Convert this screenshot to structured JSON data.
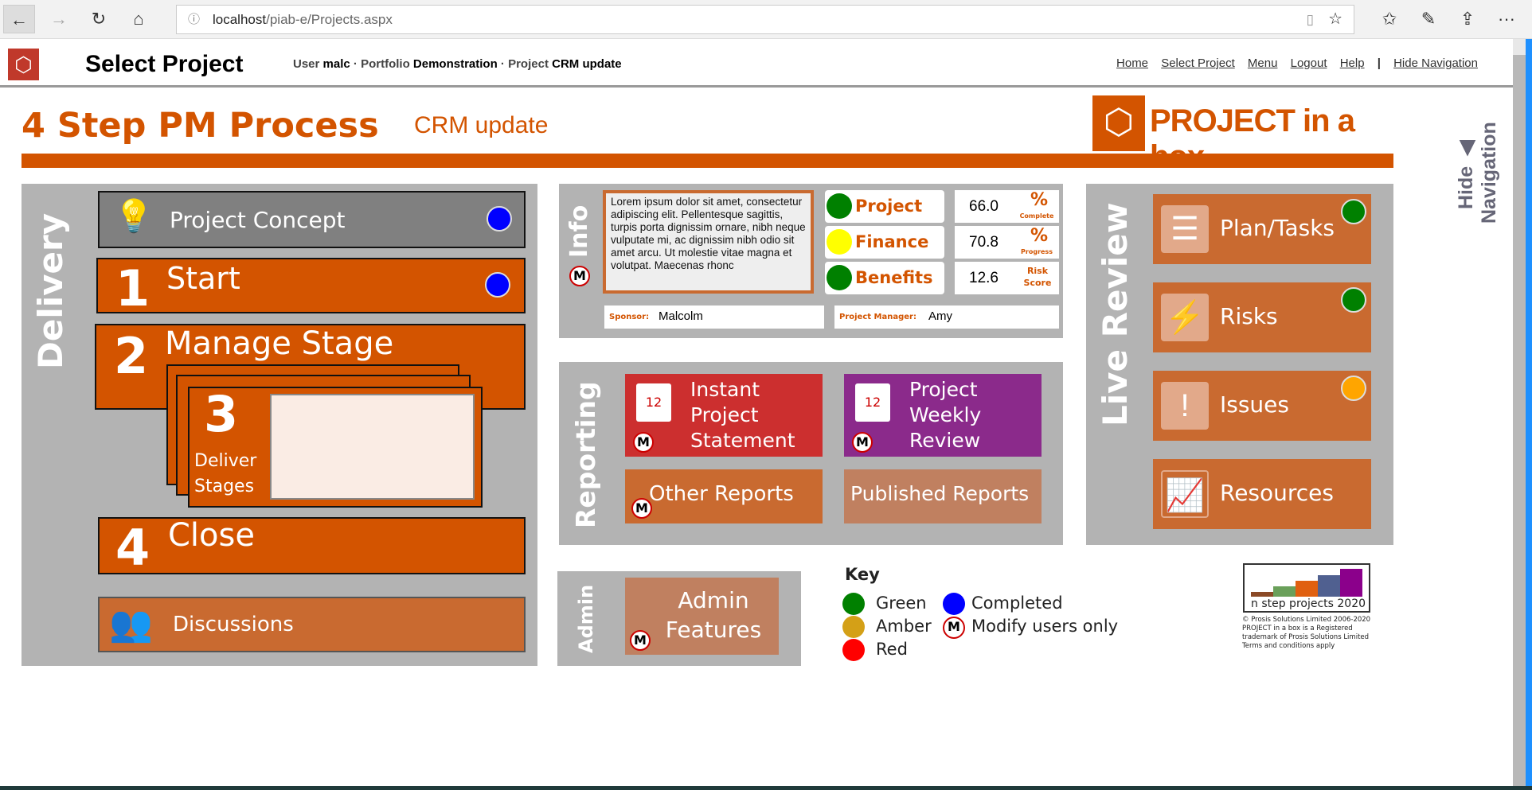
{
  "browser": {
    "url_host": "localhost",
    "url_path": "/piab-e/Projects.aspx",
    "icons": [
      "back-icon",
      "forward-icon",
      "refresh-icon",
      "home-icon",
      "info-icon",
      "reading-view-icon",
      "favorite-star-icon",
      "favorites-icon",
      "pen-icon",
      "share-icon",
      "more-icon"
    ],
    "more": "···"
  },
  "header": {
    "title": "Select Project",
    "user_label": "User",
    "user": "malc",
    "portfolio_label": "Portfolio",
    "portfolio": "Demonstration",
    "project_label": "Project",
    "project": "CRM update",
    "sep": "·",
    "links": [
      "Home",
      "Select Project",
      "Menu",
      "Logout",
      "Help"
    ],
    "divider": "|",
    "hide_nav": "Hide Navigation"
  },
  "page": {
    "title": "4 Step PM Process",
    "subtitle": "CRM update",
    "logo_text": "PROJECT in a box",
    "side_hide": "Hide",
    "side_nav": "Navigation"
  },
  "delivery": {
    "label": "Delivery",
    "concept": "Project Concept",
    "start_num": "1",
    "start": "Start",
    "manage_num": "2",
    "manage": "Manage Stage",
    "deliver_num": "3",
    "deliver": "Deliver Stages",
    "close_num": "4",
    "close": "Close",
    "discussions": "Discussions"
  },
  "info": {
    "label": "Info",
    "m": "M",
    "text": "Lorem ipsum dolor sit amet, consectetur adipiscing elit. Pellentesque sagittis, turpis porta dignissim ornare, nibh neque vulputate mi, ac dignissim nibh odio sit amet arcu. Ut molestie vitae magna et volutpat. Maecenas rhonc",
    "rag": [
      {
        "label": "Project",
        "status": "#008000",
        "value": "66.0",
        "unit": "%",
        "unit_sub": "Complete"
      },
      {
        "label": "Finance",
        "status": "#ffff00",
        "value": "70.8",
        "unit": "%",
        "unit_sub": "Progress"
      },
      {
        "label": "Benefits",
        "status": "#008000",
        "value": "12.6",
        "unit": "Risk",
        "unit_sub": "Score"
      }
    ],
    "sponsor_label": "Sponsor:",
    "sponsor": "Malcolm",
    "pm_label": "Project Manager:",
    "pm": "Amy"
  },
  "reporting": {
    "label": "Reporting",
    "instant": "Instant Project Statement",
    "weekly": "Project Weekly Review",
    "other": "Other Reports",
    "published": "Published Reports",
    "cal_num": "12"
  },
  "live": {
    "label": "Live Review",
    "items": [
      {
        "label": "Plan/Tasks",
        "status": "#008000"
      },
      {
        "label": "Risks",
        "status": "#008000"
      },
      {
        "label": "Issues",
        "status": "#ffa500"
      },
      {
        "label": "Resources"
      }
    ]
  },
  "admin": {
    "label": "Admin",
    "features": "Admin Features"
  },
  "key": {
    "title": "Key",
    "green": "Green",
    "amber": "Amber",
    "red": "Red",
    "completed": "Completed",
    "modify": "Modify users only",
    "colors": {
      "green": "#008000",
      "amber": "#d4a017",
      "red": "#ff0000",
      "completed": "#0000ff"
    }
  },
  "footer": {
    "logo_text": "n step projects 2020",
    "copyright": [
      "© Prosis Solutions Limited 2006-2020",
      "PROJECT in a box is a Registered",
      "trademark of Prosis Solutions Limited",
      "Terms and conditions apply"
    ]
  }
}
